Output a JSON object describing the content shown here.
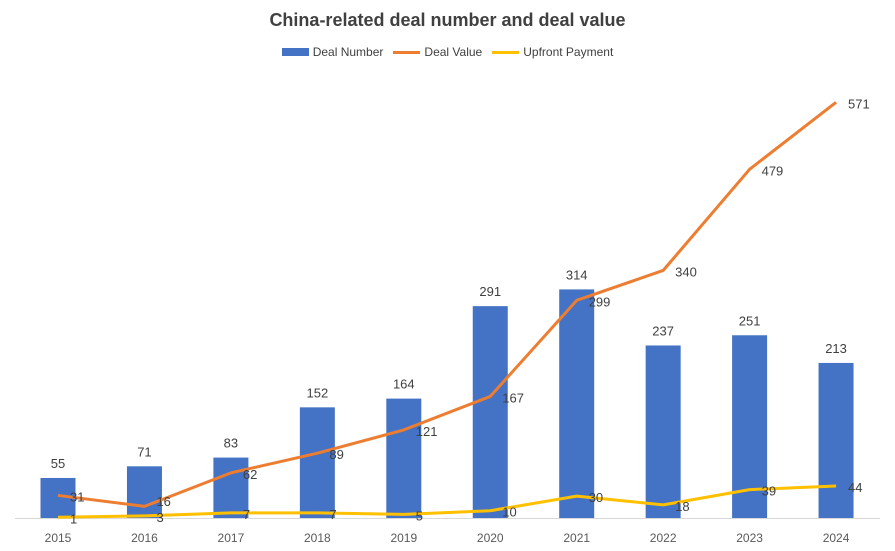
{
  "chart_data": {
    "type": "bar",
    "title": "China-related deal number and deal value",
    "categories": [
      "2015",
      "2016",
      "2017",
      "2018",
      "2019",
      "2020",
      "2021",
      "2022",
      "2023",
      "2024"
    ],
    "series": [
      {
        "name": "Deal Number",
        "type": "bar",
        "color": "#4472C4",
        "values": [
          55,
          71,
          83,
          152,
          164,
          291,
          314,
          237,
          251,
          213
        ]
      },
      {
        "name": "Deal Value",
        "type": "line",
        "color": "#ED7D31",
        "values": [
          31,
          16,
          62,
          89,
          121,
          167,
          299,
          340,
          479,
          571
        ]
      },
      {
        "name": "Upfront Payment",
        "type": "line",
        "color": "#FFC000",
        "values": [
          1,
          3,
          7,
          7,
          5,
          10,
          30,
          18,
          39,
          44
        ]
      }
    ],
    "xlabel": "",
    "ylabel": "",
    "ylim": [
      0,
      600
    ],
    "grid": false,
    "legend": "top"
  }
}
